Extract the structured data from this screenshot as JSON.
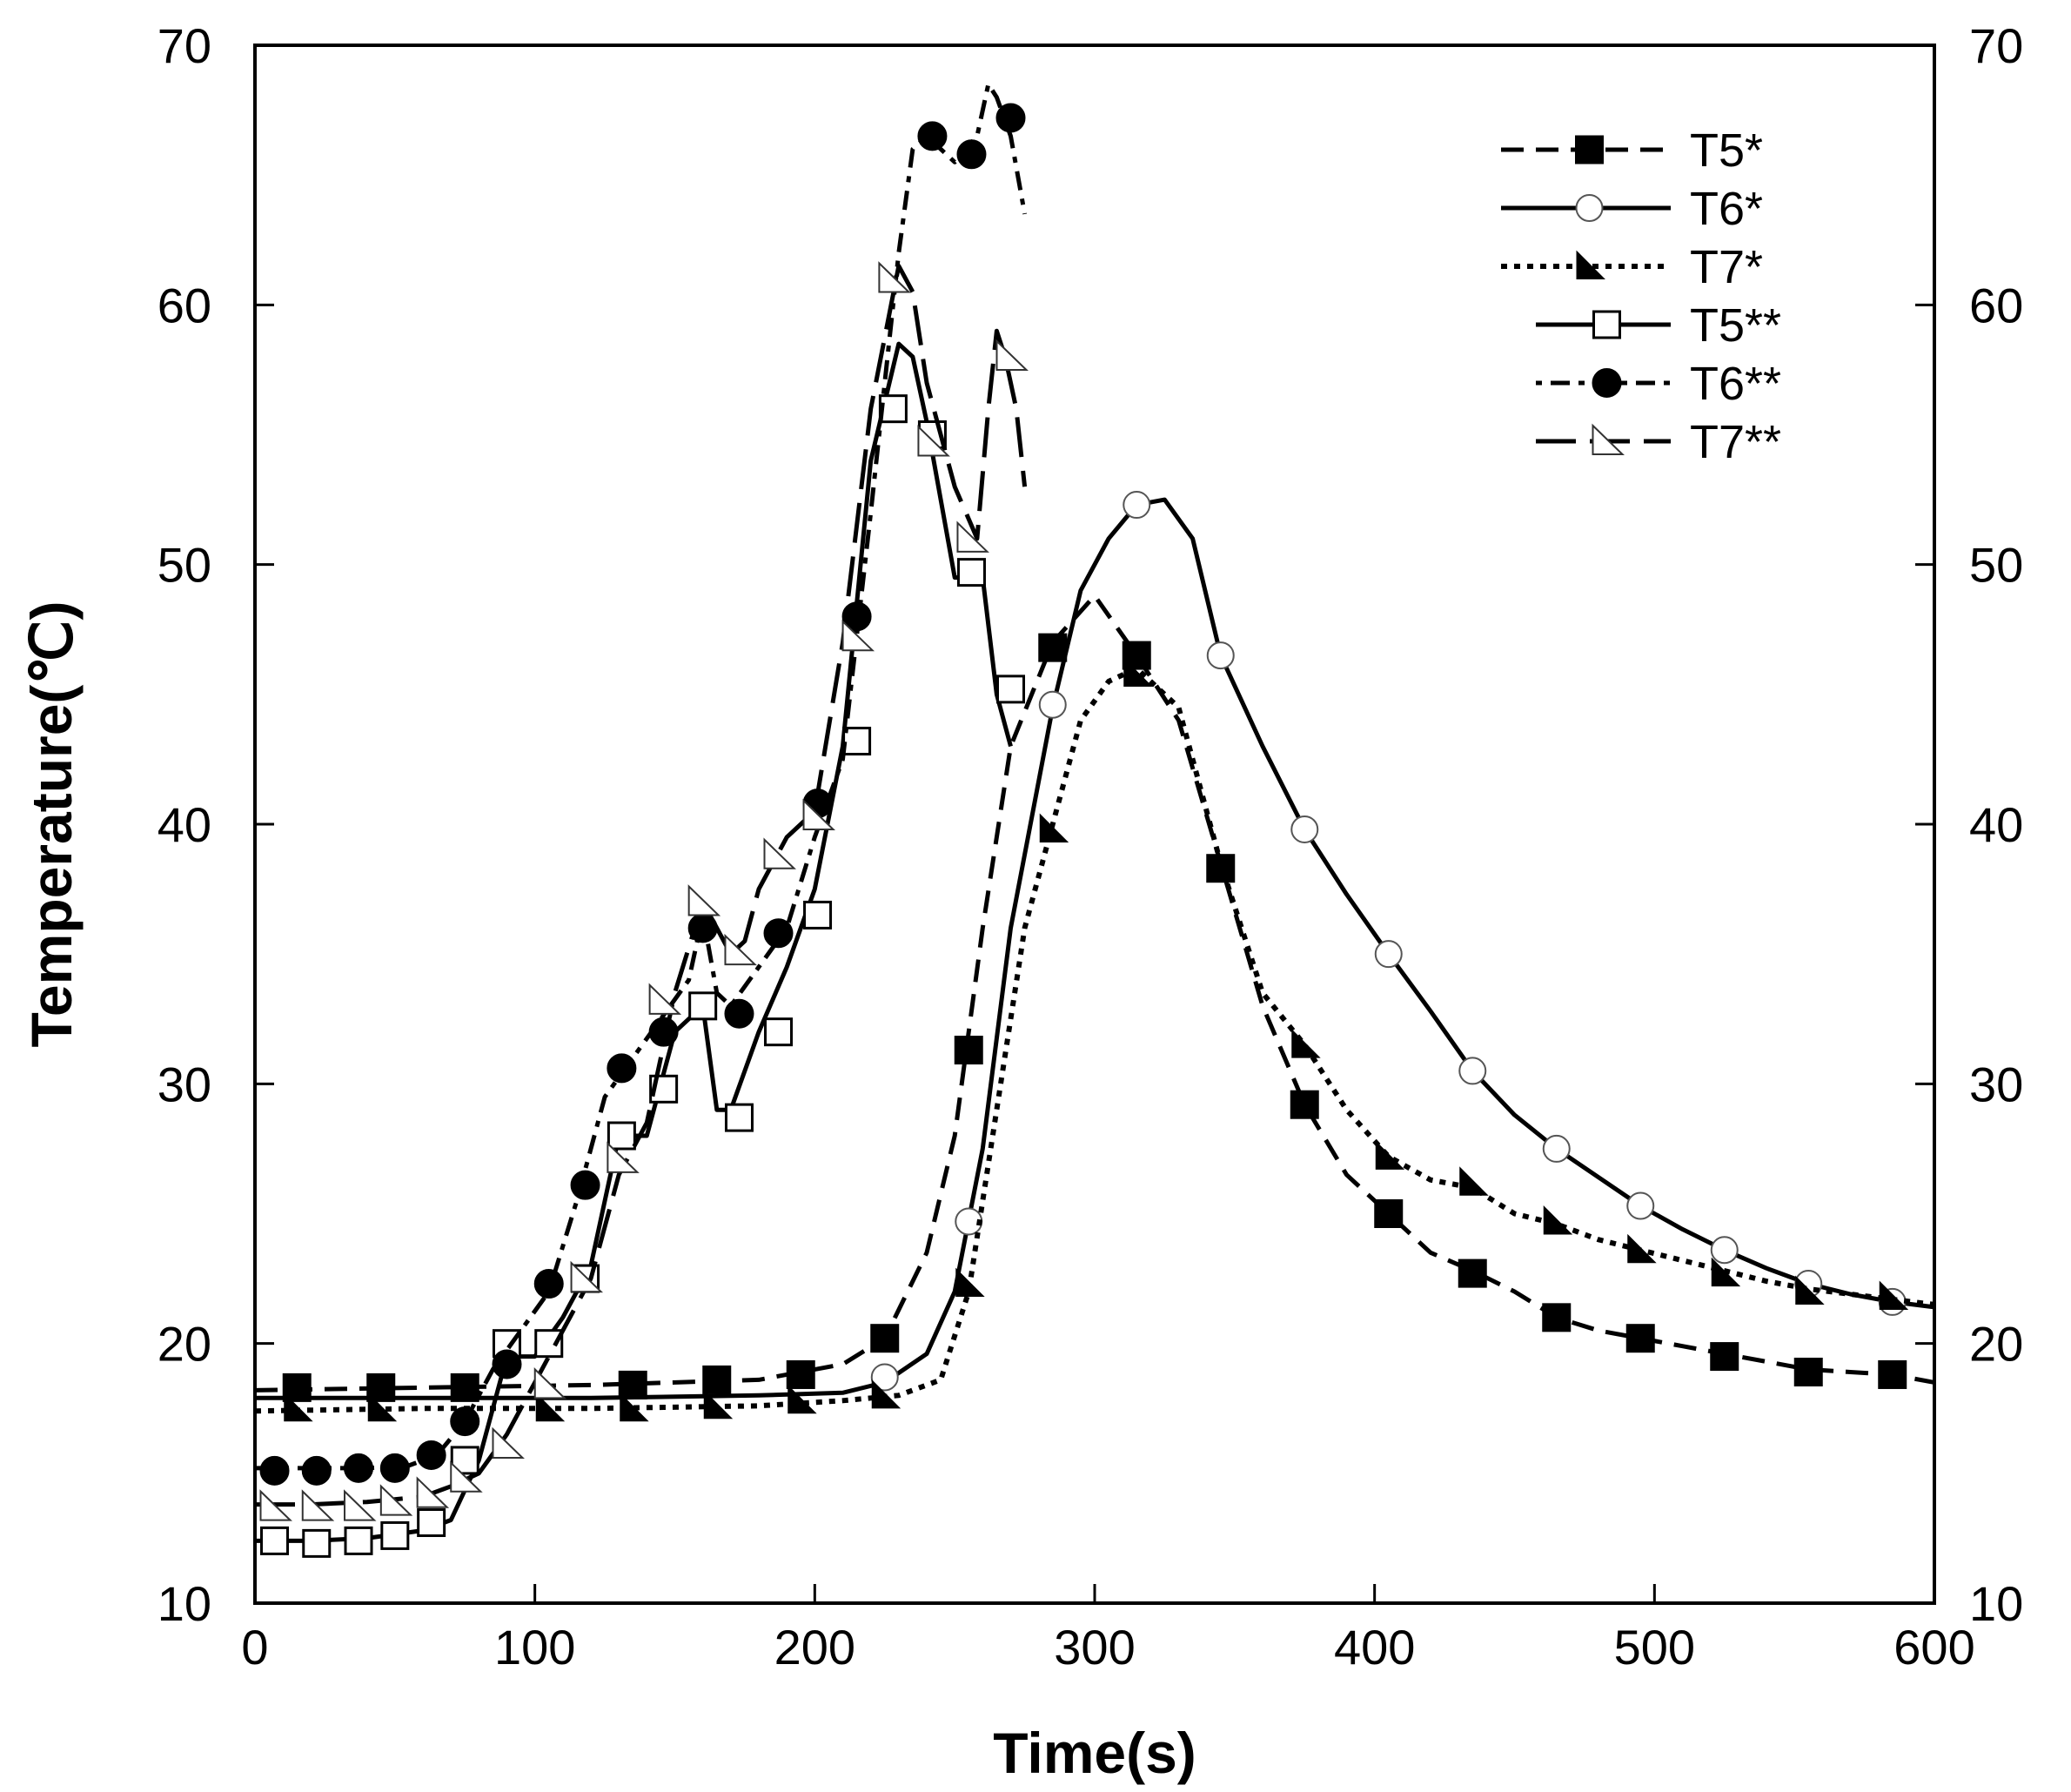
{
  "chart_data": {
    "type": "line",
    "title": "",
    "xlabel": "Time(s)",
    "ylabel": "Temperature(℃)",
    "xlim": [
      0,
      600
    ],
    "ylim": [
      10,
      70
    ],
    "xticks": [
      0,
      100,
      200,
      300,
      400,
      500,
      600
    ],
    "yticks": [
      10,
      20,
      30,
      40,
      50,
      60,
      70
    ],
    "xtick_labels": [
      "0",
      "100",
      "200",
      "300",
      "400",
      "500",
      "600"
    ],
    "ytick_labels": [
      "10",
      "20",
      "30",
      "40",
      "50",
      "60",
      "70"
    ],
    "y2tick_labels": [
      "10",
      "20",
      "30",
      "40",
      "50",
      "60",
      "70"
    ],
    "grid": false,
    "legend_position": "top-right",
    "series": [
      {
        "name": "T5*",
        "line": "dashed",
        "marker": "square-filled",
        "x": [
          0,
          60,
          120,
          180,
          210,
          225,
          240,
          250,
          260,
          270,
          285,
          300,
          315,
          330,
          345,
          360,
          375,
          390,
          405,
          420,
          435,
          450,
          465,
          480,
          495,
          510,
          525,
          540,
          555,
          570,
          585,
          600
        ],
        "y": [
          18.2,
          18.3,
          18.4,
          18.6,
          19.2,
          20.2,
          23.5,
          28.0,
          36.0,
          43.0,
          47.0,
          48.8,
          46.5,
          44.0,
          38.5,
          33.0,
          29.2,
          26.5,
          25.0,
          23.5,
          22.8,
          22.0,
          21.0,
          20.5,
          20.2,
          19.9,
          19.6,
          19.3,
          19.0,
          18.9,
          18.8,
          18.5
        ],
        "marker_x": [
          15,
          45,
          75,
          135,
          165,
          195,
          225,
          255,
          285,
          315,
          345,
          375,
          405,
          435,
          465,
          495,
          525,
          555,
          585
        ],
        "marker_y": [
          18.3,
          18.3,
          18.3,
          18.4,
          18.6,
          18.8,
          20.2,
          31.3,
          46.8,
          46.5,
          38.3,
          29.2,
          25.0,
          22.7,
          21.0,
          20.2,
          19.5,
          18.9,
          18.8
        ]
      },
      {
        "name": "T6*",
        "line": "solid",
        "marker": "circle-open",
        "x": [
          0,
          60,
          120,
          180,
          210,
          225,
          240,
          250,
          260,
          270,
          285,
          295,
          305,
          315,
          325,
          335,
          345,
          360,
          375,
          390,
          405,
          420,
          435,
          450,
          465,
          480,
          495,
          510,
          525,
          540,
          555,
          570,
          585,
          600
        ],
        "y": [
          17.9,
          17.9,
          17.9,
          18.0,
          18.1,
          18.5,
          19.6,
          22.0,
          27.5,
          36.0,
          44.5,
          49.0,
          51.0,
          52.3,
          52.5,
          51.0,
          46.5,
          43.0,
          39.8,
          37.3,
          35.0,
          32.8,
          30.5,
          28.8,
          27.5,
          26.4,
          25.3,
          24.4,
          23.6,
          22.9,
          22.3,
          21.9,
          21.6,
          21.4
        ],
        "marker_x": [
          225,
          255,
          285,
          315,
          345,
          375,
          405,
          435,
          465,
          495,
          525,
          555,
          585
        ],
        "marker_y": [
          18.7,
          24.7,
          44.6,
          52.3,
          46.5,
          39.8,
          35.0,
          30.5,
          27.5,
          25.3,
          23.6,
          22.3,
          21.6
        ]
      },
      {
        "name": "T7*",
        "line": "dotted",
        "marker": "triangle-filled",
        "x": [
          0,
          60,
          120,
          180,
          210,
          230,
          245,
          255,
          265,
          275,
          285,
          295,
          305,
          315,
          330,
          345,
          360,
          375,
          390,
          405,
          420,
          435,
          450,
          465,
          480,
          495,
          510,
          525,
          540,
          555,
          570,
          585,
          600
        ],
        "y": [
          17.4,
          17.5,
          17.5,
          17.6,
          17.8,
          18.0,
          18.6,
          22.0,
          29.0,
          36.0,
          40.0,
          44.0,
          45.5,
          46.0,
          44.5,
          38.5,
          33.5,
          31.5,
          29.0,
          27.2,
          26.3,
          26.0,
          25.0,
          24.6,
          24.0,
          23.6,
          23.2,
          22.8,
          22.4,
          22.1,
          21.9,
          21.7,
          21.5
        ],
        "marker_x": [
          15,
          45,
          105,
          135,
          165,
          195,
          225,
          255,
          285,
          315,
          375,
          405,
          435,
          465,
          495,
          525,
          555,
          585
        ],
        "marker_y": [
          17.5,
          17.5,
          17.5,
          17.5,
          17.6,
          17.8,
          18.0,
          22.3,
          39.8,
          45.8,
          31.5,
          27.2,
          26.2,
          24.7,
          23.6,
          22.7,
          22.0,
          21.8
        ]
      },
      {
        "name": "T5**",
        "line": "solid",
        "marker": "square-open",
        "x": [
          0,
          20,
          40,
          60,
          70,
          80,
          90,
          100,
          110,
          120,
          130,
          140,
          150,
          160,
          165,
          170,
          180,
          190,
          200,
          210,
          220,
          230,
          235,
          240,
          245,
          250,
          260,
          265,
          270
        ],
        "y": [
          12.4,
          12.4,
          12.5,
          12.8,
          13.2,
          15.5,
          19.5,
          19.5,
          21.0,
          23.0,
          28.0,
          28.0,
          32.0,
          33.0,
          29.0,
          29.0,
          32.0,
          34.5,
          37.5,
          43.0,
          54.0,
          58.5,
          58.0,
          55.5,
          52.5,
          49.5,
          49.5,
          45.0,
          43.0
        ],
        "marker_x": [
          7,
          22,
          37,
          50,
          63,
          75,
          90,
          105,
          118,
          131,
          146,
          160,
          173,
          187,
          201,
          215,
          228,
          242,
          256,
          270
        ],
        "marker_y": [
          12.4,
          12.3,
          12.4,
          12.6,
          13.1,
          15.5,
          20.0,
          20.0,
          22.5,
          28.0,
          29.8,
          33.0,
          28.7,
          32.0,
          36.5,
          43.2,
          56.0,
          55.0,
          49.7,
          45.2
        ]
      },
      {
        "name": "T6**",
        "line": "dash-dot",
        "marker": "circle-filled",
        "x": [
          0,
          20,
          40,
          55,
          65,
          75,
          85,
          95,
          105,
          115,
          125,
          135,
          145,
          155,
          160,
          165,
          170,
          180,
          190,
          200,
          210,
          220,
          230,
          235,
          240,
          250,
          258,
          262,
          265,
          270,
          275
        ],
        "y": [
          15.2,
          15.2,
          15.2,
          15.3,
          15.7,
          17.0,
          19.0,
          20.5,
          22.0,
          25.5,
          29.5,
          31.0,
          32.5,
          34.0,
          36.5,
          33.5,
          33.0,
          34.5,
          36.0,
          39.5,
          42.5,
          52.0,
          62.0,
          66.0,
          66.5,
          65.5,
          66.5,
          68.5,
          68.0,
          66.5,
          63.5
        ],
        "marker_x": [
          7,
          22,
          37,
          50,
          63,
          75,
          90,
          105,
          118,
          131,
          146,
          160,
          173,
          187,
          201,
          215,
          242,
          256,
          270
        ],
        "marker_y": [
          15.1,
          15.1,
          15.2,
          15.2,
          15.7,
          17.0,
          19.2,
          22.3,
          26.1,
          30.6,
          32.0,
          36.0,
          32.7,
          35.8,
          40.8,
          48.0,
          66.5,
          65.8,
          67.2
        ]
      },
      {
        "name": "T7**",
        "line": "long-dash",
        "marker": "triangle-open",
        "x": [
          0,
          20,
          40,
          60,
          70,
          80,
          90,
          100,
          110,
          120,
          130,
          140,
          150,
          160,
          165,
          170,
          175,
          180,
          190,
          200,
          210,
          220,
          230,
          235,
          240,
          245,
          250,
          258,
          262,
          265,
          268,
          272,
          275
        ],
        "y": [
          13.8,
          13.8,
          13.9,
          14.1,
          14.5,
          15.0,
          16.5,
          18.5,
          20.5,
          22.5,
          26.5,
          28.5,
          33.5,
          37.0,
          36.0,
          35.0,
          35.5,
          37.5,
          39.5,
          40.5,
          47.0,
          56.0,
          61.5,
          60.5,
          57.0,
          55.0,
          53.0,
          51.0,
          56.0,
          59.0,
          58.0,
          56.0,
          53.0
        ],
        "marker_x": [
          7,
          22,
          37,
          50,
          63,
          75,
          90,
          105,
          118,
          131,
          146,
          160,
          173,
          187,
          201,
          215,
          228,
          242,
          256,
          270
        ],
        "marker_y": [
          13.7,
          13.7,
          13.7,
          13.9,
          14.2,
          14.8,
          16.1,
          18.4,
          22.5,
          27.1,
          33.2,
          37.0,
          35.1,
          38.8,
          40.3,
          47.2,
          61.0,
          54.7,
          51.0,
          58.0
        ]
      }
    ]
  }
}
